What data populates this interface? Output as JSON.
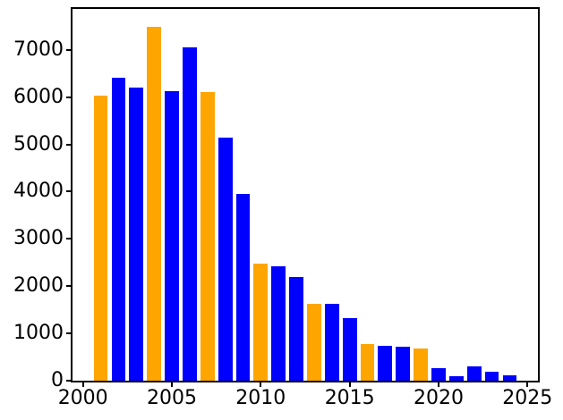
{
  "figure": {
    "background": "#ffffff",
    "frame_color": "#000000",
    "tick_color": "#000000",
    "tick_label_color": "#000000"
  },
  "chart_data": {
    "type": "bar",
    "title": "",
    "xlabel": "",
    "ylabel": "",
    "grid": false,
    "legend": null,
    "x": [
      2001,
      2002,
      2003,
      2004,
      2005,
      2006,
      2007,
      2008,
      2009,
      2010,
      2011,
      2012,
      2013,
      2014,
      2015,
      2016,
      2017,
      2018,
      2019,
      2020,
      2021,
      2022,
      2023,
      2024
    ],
    "values": [
      6030,
      6410,
      6210,
      7490,
      6130,
      7060,
      6100,
      5140,
      3950,
      2480,
      2420,
      2200,
      1630,
      1620,
      1320,
      780,
      730,
      720,
      690,
      260,
      90,
      300,
      190,
      110
    ],
    "bar_colors": [
      "orange",
      "blue",
      "blue",
      "orange",
      "blue",
      "blue",
      "orange",
      "blue",
      "blue",
      "orange",
      "blue",
      "blue",
      "orange",
      "blue",
      "blue",
      "orange",
      "blue",
      "blue",
      "orange",
      "blue",
      "blue",
      "blue",
      "blue",
      "blue"
    ],
    "palette": {
      "blue": "#0000ff",
      "orange": "#ffa500"
    },
    "bar_width": 0.8,
    "xlim": [
      1999.41,
      2025.59
    ],
    "ylim": [
      0,
      7865
    ],
    "xticks": [
      {
        "pos": 2000,
        "label": "2000"
      },
      {
        "pos": 2005,
        "label": "2005"
      },
      {
        "pos": 2010,
        "label": "2010"
      },
      {
        "pos": 2015,
        "label": "2015"
      },
      {
        "pos": 2020,
        "label": "2020"
      },
      {
        "pos": 2025,
        "label": "2025"
      }
    ],
    "yticks": [
      {
        "pos": 0,
        "label": "0"
      },
      {
        "pos": 1000,
        "label": "1000"
      },
      {
        "pos": 2000,
        "label": "2000"
      },
      {
        "pos": 3000,
        "label": "3000"
      },
      {
        "pos": 4000,
        "label": "4000"
      },
      {
        "pos": 5000,
        "label": "5000"
      },
      {
        "pos": 6000,
        "label": "6000"
      },
      {
        "pos": 7000,
        "label": "7000"
      }
    ]
  }
}
